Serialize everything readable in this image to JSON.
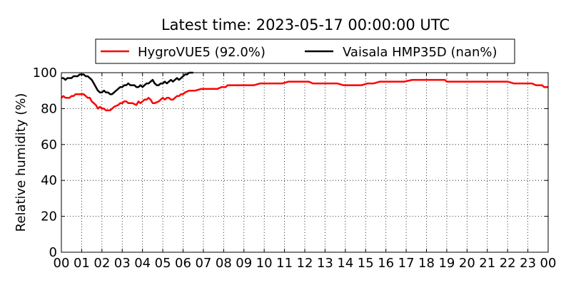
{
  "chart_data": {
    "type": "line",
    "title": "Latest time: 2023-05-17 00:00:00 UTC",
    "xlabel": "",
    "ylabel": "Relative humidity (%)",
    "xlim": [
      0,
      24
    ],
    "ylim": [
      0,
      100
    ],
    "grid": true,
    "legend_position": "top-center",
    "x_tick_labels": [
      "00",
      "01",
      "02",
      "03",
      "04",
      "05",
      "06",
      "07",
      "08",
      "09",
      "10",
      "11",
      "12",
      "13",
      "14",
      "15",
      "16",
      "17",
      "18",
      "19",
      "20",
      "21",
      "22",
      "23",
      "00"
    ],
    "y_tick_labels": [
      "0",
      "20",
      "40",
      "60",
      "80",
      "100"
    ],
    "series": [
      {
        "name": "HygroVUE5 (92.0%)",
        "color": "#ff0000",
        "x": [
          0,
          0.1,
          0.2,
          0.4,
          0.5,
          0.6,
          0.7,
          0.8,
          1.0,
          1.1,
          1.3,
          1.4,
          1.5,
          1.6,
          1.7,
          1.8,
          1.9,
          2.0,
          2.1,
          2.2,
          2.3,
          2.4,
          2.6,
          2.8,
          2.9,
          3.0,
          3.1,
          3.2,
          3.3,
          3.5,
          3.7,
          3.8,
          3.9,
          4.0,
          4.1,
          4.2,
          4.3,
          4.4,
          4.5,
          4.6,
          4.8,
          4.9,
          5.0,
          5.1,
          5.2,
          5.3,
          5.4,
          5.5,
          5.6,
          5.7,
          5.8,
          5.9,
          6.0,
          6.1,
          6.3,
          6.5,
          6.6,
          6.9,
          7.3,
          7.5,
          7.7,
          7.9,
          8.0,
          8.1,
          8.2,
          8.3,
          8.5,
          8.7,
          8.9,
          9.0,
          9.2,
          9.5,
          9.8,
          10.0,
          10.3,
          10.6,
          10.9,
          11.2,
          11.5,
          11.8,
          12.2,
          12.4,
          12.7,
          13.0,
          13.3,
          13.6,
          13.9,
          14.2,
          14.5,
          14.8,
          15.1,
          15.4,
          15.7,
          16.0,
          16.3,
          16.6,
          16.9,
          17.3,
          17.6,
          18.0,
          18.3,
          18.6,
          18.9,
          19.0,
          19.1,
          19.3,
          19.7,
          20.0,
          20.3,
          20.7,
          21.0,
          21.3,
          21.7,
          22.0,
          22.3,
          22.6,
          22.9,
          23.2,
          23.4,
          23.6,
          23.7,
          23.8,
          23.9,
          24.0
        ],
        "values": [
          86,
          87,
          86,
          86,
          87,
          87,
          88,
          88,
          88,
          88,
          86,
          86,
          84,
          83,
          82,
          80,
          81,
          80,
          80,
          79,
          79,
          79,
          81,
          82,
          83,
          83,
          84,
          84,
          83,
          83,
          82,
          84,
          83,
          84,
          85,
          85,
          86,
          85,
          83,
          83,
          84,
          85,
          86,
          85,
          86,
          86,
          85,
          85,
          86,
          87,
          87,
          88,
          88,
          89,
          90,
          90,
          90,
          91,
          91,
          91,
          91,
          92,
          92,
          92,
          93,
          93,
          93,
          93,
          93,
          93,
          93,
          93,
          94,
          94,
          94,
          94,
          94,
          95,
          95,
          95,
          95,
          94,
          94,
          94,
          94,
          94,
          93,
          93,
          93,
          93,
          94,
          94,
          95,
          95,
          95,
          95,
          95,
          96,
          96,
          96,
          96,
          96,
          96,
          95,
          95,
          95,
          95,
          95,
          95,
          95,
          95,
          95,
          95,
          95,
          94,
          94,
          94,
          94,
          93,
          93,
          93,
          92,
          92,
          92
        ]
      },
      {
        "name": "Vaisala HMP35D (nan%)",
        "color": "#000000",
        "x": [
          0,
          0.1,
          0.2,
          0.3,
          0.4,
          0.5,
          0.6,
          0.7,
          0.8,
          0.9,
          1.0,
          1.1,
          1.2,
          1.3,
          1.4,
          1.5,
          1.6,
          1.7,
          1.8,
          1.9,
          2.0,
          2.1,
          2.2,
          2.3,
          2.4,
          2.5,
          2.6,
          2.7,
          2.8,
          2.9,
          3.0,
          3.1,
          3.2,
          3.3,
          3.4,
          3.5,
          3.6,
          3.7,
          3.8,
          3.9,
          4.0,
          4.1,
          4.2,
          4.3,
          4.4,
          4.5,
          4.6,
          4.7,
          4.8,
          4.9,
          5.0,
          5.1,
          5.2,
          5.3,
          5.4,
          5.5,
          5.6,
          5.7,
          5.8,
          5.9,
          6.0,
          6.1,
          6.2,
          6.3,
          6.4,
          6.5
        ],
        "values": [
          97,
          97,
          96,
          97,
          97,
          97,
          98,
          98,
          98,
          99,
          99,
          99,
          98,
          98,
          97,
          96,
          94,
          92,
          90,
          89,
          89,
          90,
          89,
          89,
          88,
          88,
          89,
          90,
          91,
          92,
          92,
          93,
          93,
          94,
          93,
          93,
          93,
          92,
          92,
          93,
          92,
          93,
          94,
          94,
          95,
          96,
          94,
          93,
          93,
          94,
          94,
          95,
          94,
          95,
          96,
          95,
          96,
          97,
          96,
          97,
          98,
          99,
          99,
          100,
          100,
          100
        ]
      }
    ]
  }
}
